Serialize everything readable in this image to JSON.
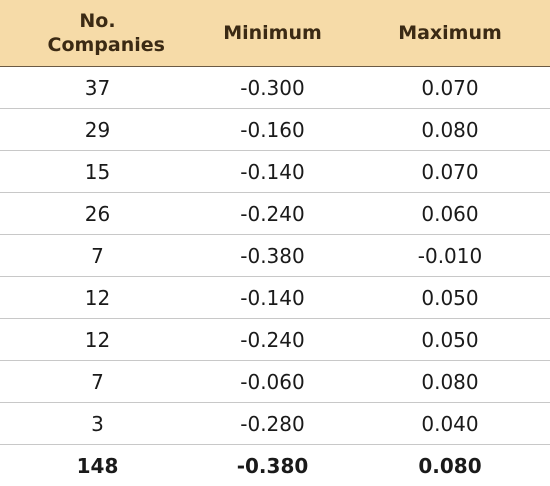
{
  "table": {
    "header": [
      "No. Companies",
      "Minimum",
      "Maximum"
    ],
    "rows": [
      [
        "37",
        "-0.300",
        "0.070"
      ],
      [
        "29",
        "-0.160",
        "0.080"
      ],
      [
        "15",
        "-0.140",
        "0.070"
      ],
      [
        "26",
        "-0.240",
        "0.060"
      ],
      [
        "7",
        "-0.380",
        "-0.010"
      ],
      [
        "12",
        "-0.140",
        "0.050"
      ],
      [
        "12",
        "-0.240",
        "0.050"
      ],
      [
        "7",
        "-0.060",
        "0.080"
      ],
      [
        "3",
        "-0.280",
        "0.040"
      ]
    ],
    "total": [
      "148",
      "-0.380",
      "0.080"
    ]
  }
}
